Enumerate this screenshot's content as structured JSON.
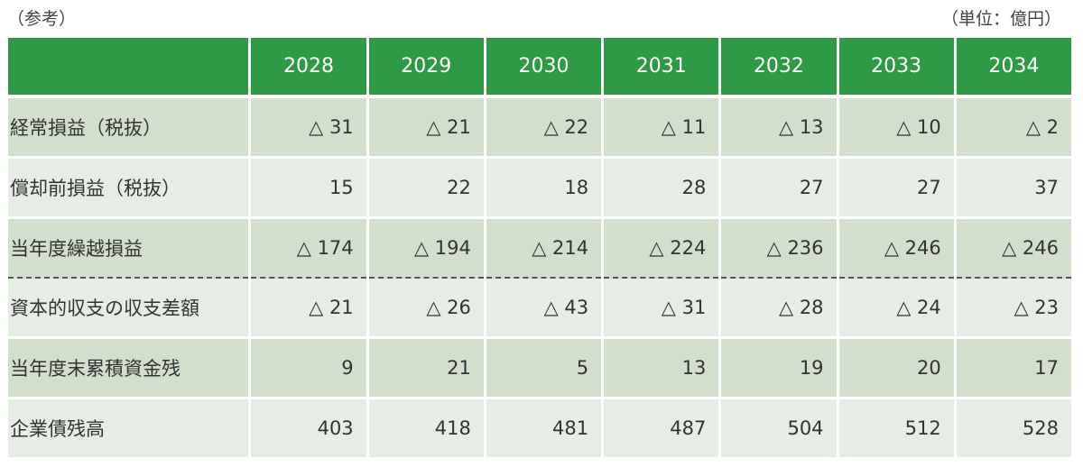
{
  "notes": {
    "left": "（参考）",
    "right": "（単位：億円）"
  },
  "table": {
    "headers": [
      "",
      "2028",
      "2029",
      "2030",
      "2031",
      "2032",
      "2033",
      "2034"
    ],
    "rows": [
      {
        "label": "経常損益（税抜）",
        "values": [
          "△ 31",
          "△ 21",
          "△ 22",
          "△ 11",
          "△ 13",
          "△ 10",
          "△ 2"
        ]
      },
      {
        "label": "償却前損益（税抜）",
        "values": [
          "15",
          "22",
          "18",
          "28",
          "27",
          "27",
          "37"
        ]
      },
      {
        "label": "当年度繰越損益",
        "values": [
          "△ 174",
          "△ 194",
          "△ 214",
          "△ 224",
          "△ 236",
          "△ 246",
          "△ 246"
        ]
      },
      {
        "label": "資本的収支の収支差額",
        "values": [
          "△ 21",
          "△ 26",
          "△ 43",
          "△ 31",
          "△ 28",
          "△ 24",
          "△ 23"
        ]
      },
      {
        "label": "当年度末累積資金残",
        "values": [
          "9",
          "21",
          "5",
          "13",
          "19",
          "20",
          "17"
        ]
      },
      {
        "label": "企業債残高",
        "values": [
          "403",
          "418",
          "481",
          "487",
          "504",
          "512",
          "528"
        ]
      }
    ]
  }
}
